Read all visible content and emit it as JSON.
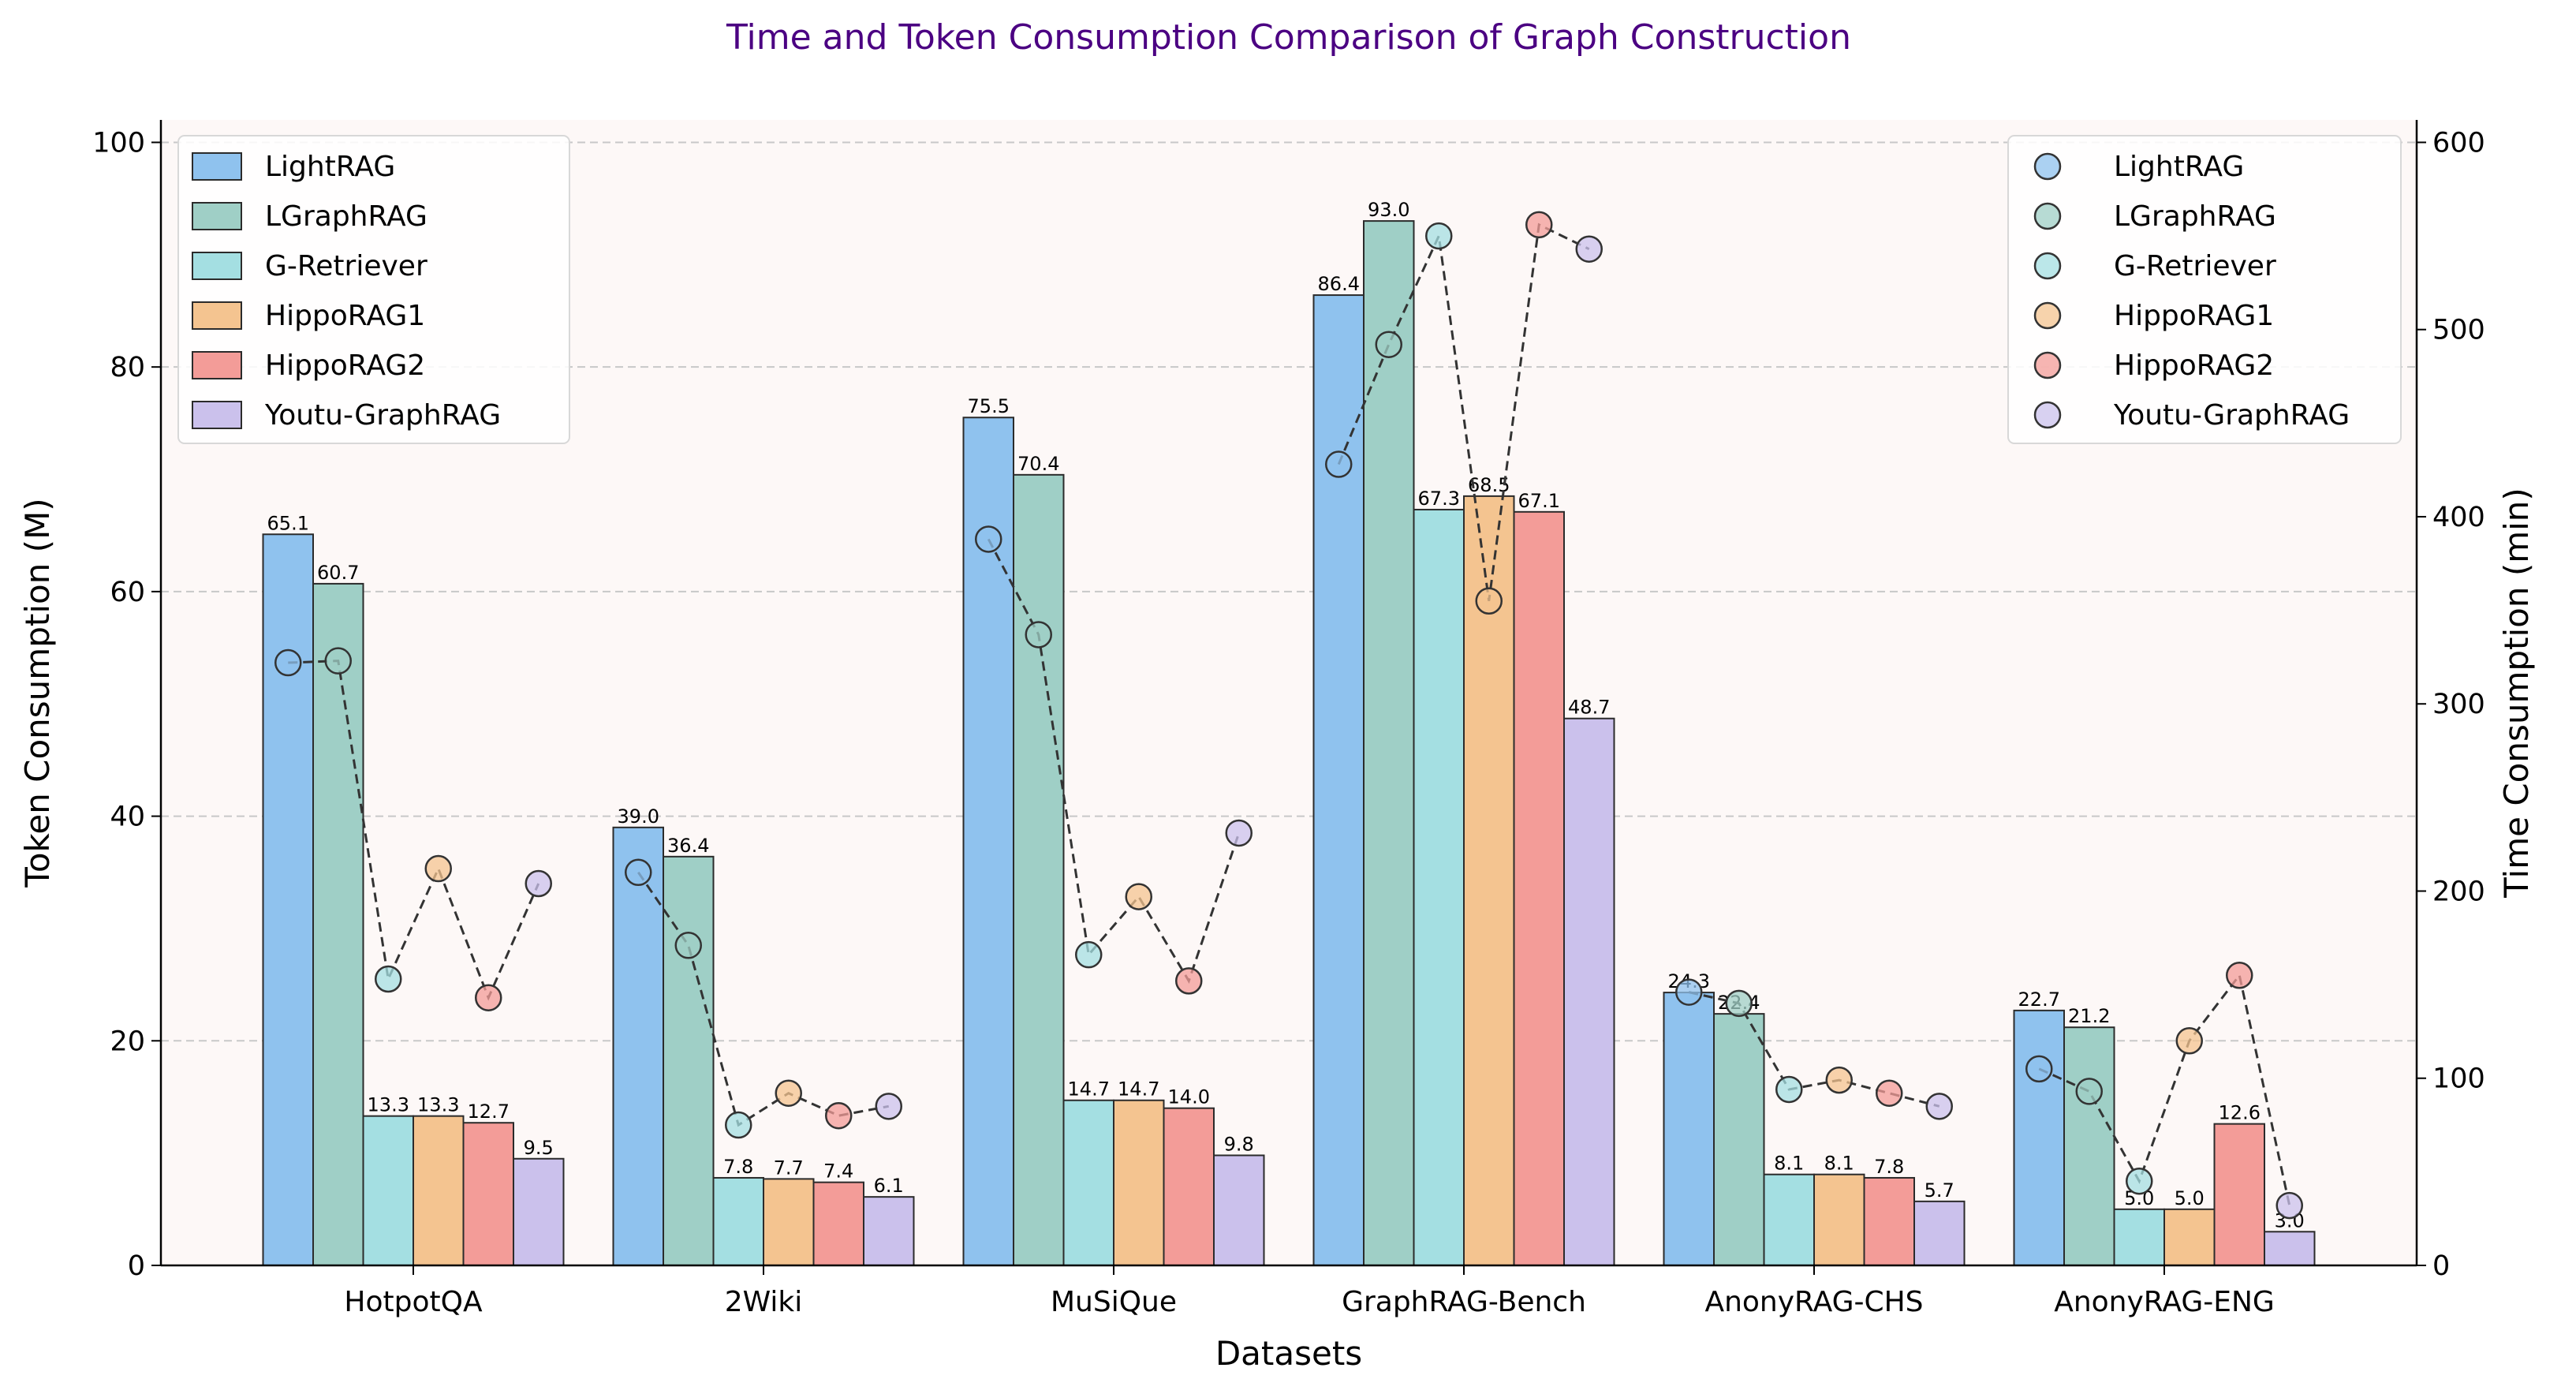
{
  "chart_data": {
    "type": "bar",
    "title": "Time and Token Consumption Comparison of Graph Construction",
    "xlabel": "Datasets",
    "ylabel": "Token Consumption (M)",
    "y2label": "Time Consumption (min)",
    "ylim": [
      0,
      102
    ],
    "y2lim": [
      0,
      612
    ],
    "yticks": [
      0,
      20,
      40,
      60,
      80,
      100
    ],
    "y2ticks": [
      0,
      100,
      200,
      300,
      400,
      500,
      600
    ],
    "categories": [
      "HotpotQA",
      "2Wiki",
      "MuSiQue",
      "GraphRAG-Bench",
      "AnonyRAG-CHS",
      "AnonyRAG-ENG"
    ],
    "series": [
      {
        "name": "LightRAG",
        "color": "#8fc2ee",
        "token": [
          65.1,
          39.0,
          75.5,
          86.4,
          24.3,
          22.7
        ],
        "time": [
          322,
          210,
          388,
          428,
          146,
          105
        ]
      },
      {
        "name": "LGraphRAG",
        "color": "#9fcfc6",
        "token": [
          60.7,
          36.4,
          70.4,
          93.0,
          22.4,
          21.2
        ],
        "time": [
          323,
          171,
          337,
          492,
          140,
          93
        ]
      },
      {
        "name": "G-Retriever",
        "color": "#a4dfe2",
        "token": [
          13.3,
          7.8,
          14.7,
          67.3,
          8.1,
          5.0
        ],
        "time": [
          153,
          75,
          166,
          550,
          94,
          45
        ]
      },
      {
        "name": "HippoRAG1",
        "color": "#f4c490",
        "token": [
          13.3,
          7.7,
          14.7,
          68.5,
          8.1,
          5.0
        ],
        "time": [
          212,
          92,
          197,
          355,
          99,
          120
        ]
      },
      {
        "name": "HippoRAG2",
        "color": "#f39c98",
        "token": [
          12.7,
          7.4,
          14.0,
          67.1,
          7.8,
          12.6
        ],
        "time": [
          143,
          80,
          152,
          556,
          92,
          155
        ]
      },
      {
        "name": "Youtu-GraphRAG",
        "color": "#cbc1ec",
        "token": [
          9.5,
          6.1,
          9.8,
          48.7,
          5.7,
          3.0
        ],
        "time": [
          204,
          85,
          231,
          543,
          85,
          32
        ]
      }
    ],
    "legend_bars_position": "upper-left",
    "legend_points_position": "upper-right",
    "grid": "horizontal dashed"
  }
}
